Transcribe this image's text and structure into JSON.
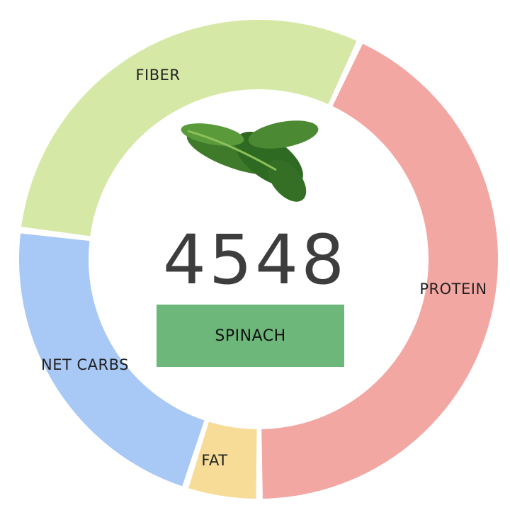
{
  "chart_data": {
    "type": "pie",
    "style": "donut",
    "categories": [
      "PROTEIN",
      "FAT",
      "NET CARBS",
      "FIBER"
    ],
    "values": [
      43,
      5,
      22,
      30
    ],
    "colors": [
      "#f3a7a3",
      "#f7dc98",
      "#a8c8f5",
      "#d6e8a6"
    ],
    "center_value": "4548",
    "center_label": "SPINACH",
    "center_label_color": "#6db77a",
    "image": "spinach-leaves"
  }
}
